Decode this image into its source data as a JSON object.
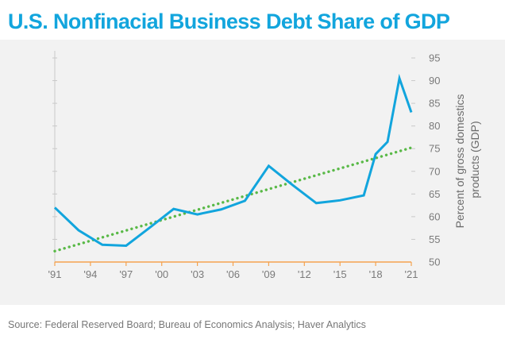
{
  "title": "U.S. Nonfinacial Business Debt Share of GDP",
  "source": "Source: Federal Reserved Board; Bureau of Economics Analysis; Haver Analytics",
  "colors": {
    "title": "#12a5dd",
    "series": "#12a5dd",
    "trend": "#59b947",
    "baseline": "#f4a24f",
    "background": "#f2f2f2"
  },
  "chart_data": {
    "type": "line",
    "title": "U.S. Nonfinacial Business Debt Share of GDP",
    "xlabel": "",
    "ylabel": "Percent of gross domestics products (GDP)",
    "ylabel_lines": [
      "Percent of gross domestics",
      "products (GDP)"
    ],
    "x_ticks": [
      "'91",
      "'94",
      "'97",
      "'00",
      "'03",
      "'06",
      "'09",
      "'12",
      "'15",
      "'18",
      "'21"
    ],
    "x_tick_years": [
      1991,
      1994,
      1997,
      2000,
      2003,
      2006,
      2009,
      2012,
      2015,
      2018,
      2021
    ],
    "y_ticks": [
      50,
      55,
      60,
      65,
      70,
      75,
      80,
      85,
      90,
      95
    ],
    "ylim": [
      50,
      95
    ],
    "xlim": [
      1991,
      2021
    ],
    "y_axis_position": "right",
    "grid": false,
    "series": [
      {
        "style": "solid",
        "x": [
          1991,
          1993,
          1995,
          1997,
          1999,
          2001,
          2003,
          2005,
          2007,
          2009,
          2011,
          2013,
          2015,
          2017,
          2018,
          2019,
          2020,
          2021
        ],
        "values": [
          62,
          57,
          53.8,
          53.6,
          57.6,
          61.7,
          60.5,
          61.6,
          63.5,
          71.2,
          67,
          63,
          63.6,
          64.7,
          73.8,
          76.5,
          90.5,
          83
        ]
      },
      {
        "style": "dotted",
        "x": [
          1991,
          2021
        ],
        "values": [
          52.4,
          75.2
        ]
      }
    ]
  }
}
